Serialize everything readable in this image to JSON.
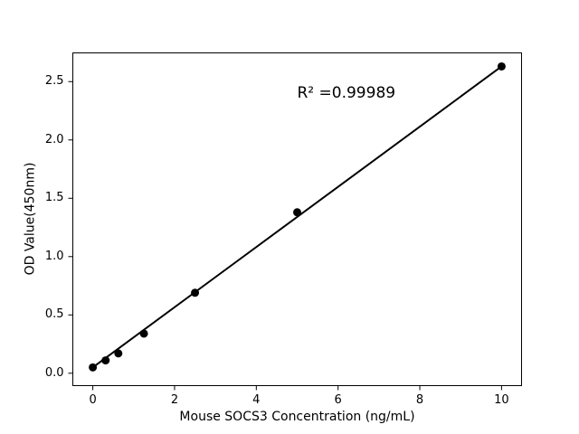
{
  "chart_data": {
    "type": "scatter",
    "title": "",
    "xlabel": "Mouse SOCS3 Concentration (ng/mL)",
    "ylabel": "OD Value(450nm)",
    "points": [
      {
        "x": 0,
        "y": 0.05
      },
      {
        "x": 0.313,
        "y": 0.11
      },
      {
        "x": 0.625,
        "y": 0.17
      },
      {
        "x": 1.25,
        "y": 0.34
      },
      {
        "x": 2.5,
        "y": 0.69
      },
      {
        "x": 5,
        "y": 1.38
      },
      {
        "x": 10,
        "y": 2.63
      }
    ],
    "fit_line": {
      "x1": 0,
      "y1": 0.05,
      "x2": 10,
      "y2": 2.63,
      "r_squared": 0.99989
    },
    "annotation": {
      "text": "R² =0.99989",
      "x": 5.0,
      "y": 2.36
    },
    "xticks": [
      {
        "label": "0",
        "value": 0
      },
      {
        "label": "2",
        "value": 2
      },
      {
        "label": "4",
        "value": 4
      },
      {
        "label": "6",
        "value": 6
      },
      {
        "label": "8",
        "value": 8
      },
      {
        "label": "10",
        "value": 10
      }
    ],
    "yticks": [
      {
        "label": "0.0",
        "value": 0.0
      },
      {
        "label": "0.5",
        "value": 0.5
      },
      {
        "label": "1.0",
        "value": 1.0
      },
      {
        "label": "1.5",
        "value": 1.5
      },
      {
        "label": "2.0",
        "value": 2.0
      },
      {
        "label": "2.5",
        "value": 2.5
      }
    ],
    "xlim": [
      -0.5,
      10.5
    ],
    "ylim": [
      -0.11,
      2.75
    ],
    "grid": false,
    "legend": null,
    "colors": {
      "marker": "#000000",
      "line": "#000000",
      "axis": "#000000",
      "background": "#ffffff"
    }
  }
}
